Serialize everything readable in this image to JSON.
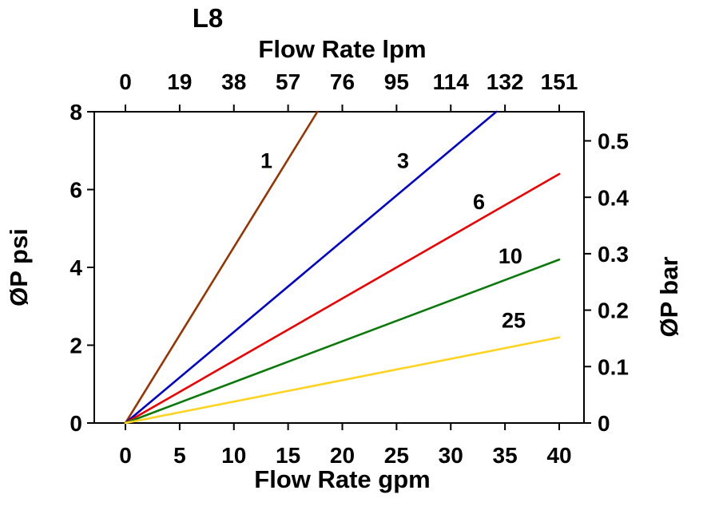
{
  "chart_data": {
    "type": "line",
    "title": "L8",
    "background": "#ffffff",
    "axis_color": "#000000",
    "grid": false,
    "legend": "none (inline labels on lines)",
    "top_axis": {
      "label": "Flow Rate lpm",
      "ticks": [
        "0",
        "19",
        "38",
        "57",
        "76",
        "95",
        "114",
        "132",
        "151"
      ]
    },
    "bottom_axis": {
      "label": "Flow Rate gpm",
      "ticks": [
        "0",
        "5",
        "10",
        "15",
        "20",
        "25",
        "30",
        "35",
        "40"
      ],
      "tick_values": [
        0,
        5,
        10,
        15,
        20,
        25,
        30,
        35,
        40
      ],
      "range": [
        0,
        40
      ]
    },
    "left_axis": {
      "label": "ØP psi",
      "ticks": [
        "0",
        "2",
        "4",
        "6",
        "8"
      ],
      "tick_values": [
        0,
        2,
        4,
        6,
        8
      ],
      "range": [
        0,
        8
      ]
    },
    "right_axis": {
      "label": "ØP bar",
      "ticks": [
        "0",
        "0.1",
        "0.2",
        "0.3",
        "0.4",
        "0.5"
      ],
      "tick_values": [
        0,
        0.1,
        0.2,
        0.3,
        0.4,
        0.5
      ],
      "psi_per_bar": 14.5038
    },
    "series": [
      {
        "name": "1",
        "color": "#993300",
        "points": [
          [
            0,
            0
          ],
          [
            17.7,
            8
          ]
        ],
        "label_at": [
          13.0,
          6.55
        ]
      },
      {
        "name": "3",
        "color": "#0000cc",
        "points": [
          [
            0,
            0
          ],
          [
            34.2,
            8
          ]
        ],
        "label_at": [
          25.6,
          6.55
        ]
      },
      {
        "name": "6",
        "color": "#ee0000",
        "points": [
          [
            0,
            0
          ],
          [
            40,
            6.4
          ]
        ],
        "label_at": [
          32.6,
          5.5
        ]
      },
      {
        "name": "10",
        "color": "#0b7a0b",
        "points": [
          [
            0,
            0
          ],
          [
            40,
            4.2
          ]
        ],
        "label_at": [
          35.5,
          4.1
        ]
      },
      {
        "name": "25",
        "color": "#ffd320",
        "points": [
          [
            0,
            0
          ],
          [
            40,
            2.2
          ]
        ],
        "label_at": [
          35.8,
          2.45
        ]
      }
    ]
  }
}
